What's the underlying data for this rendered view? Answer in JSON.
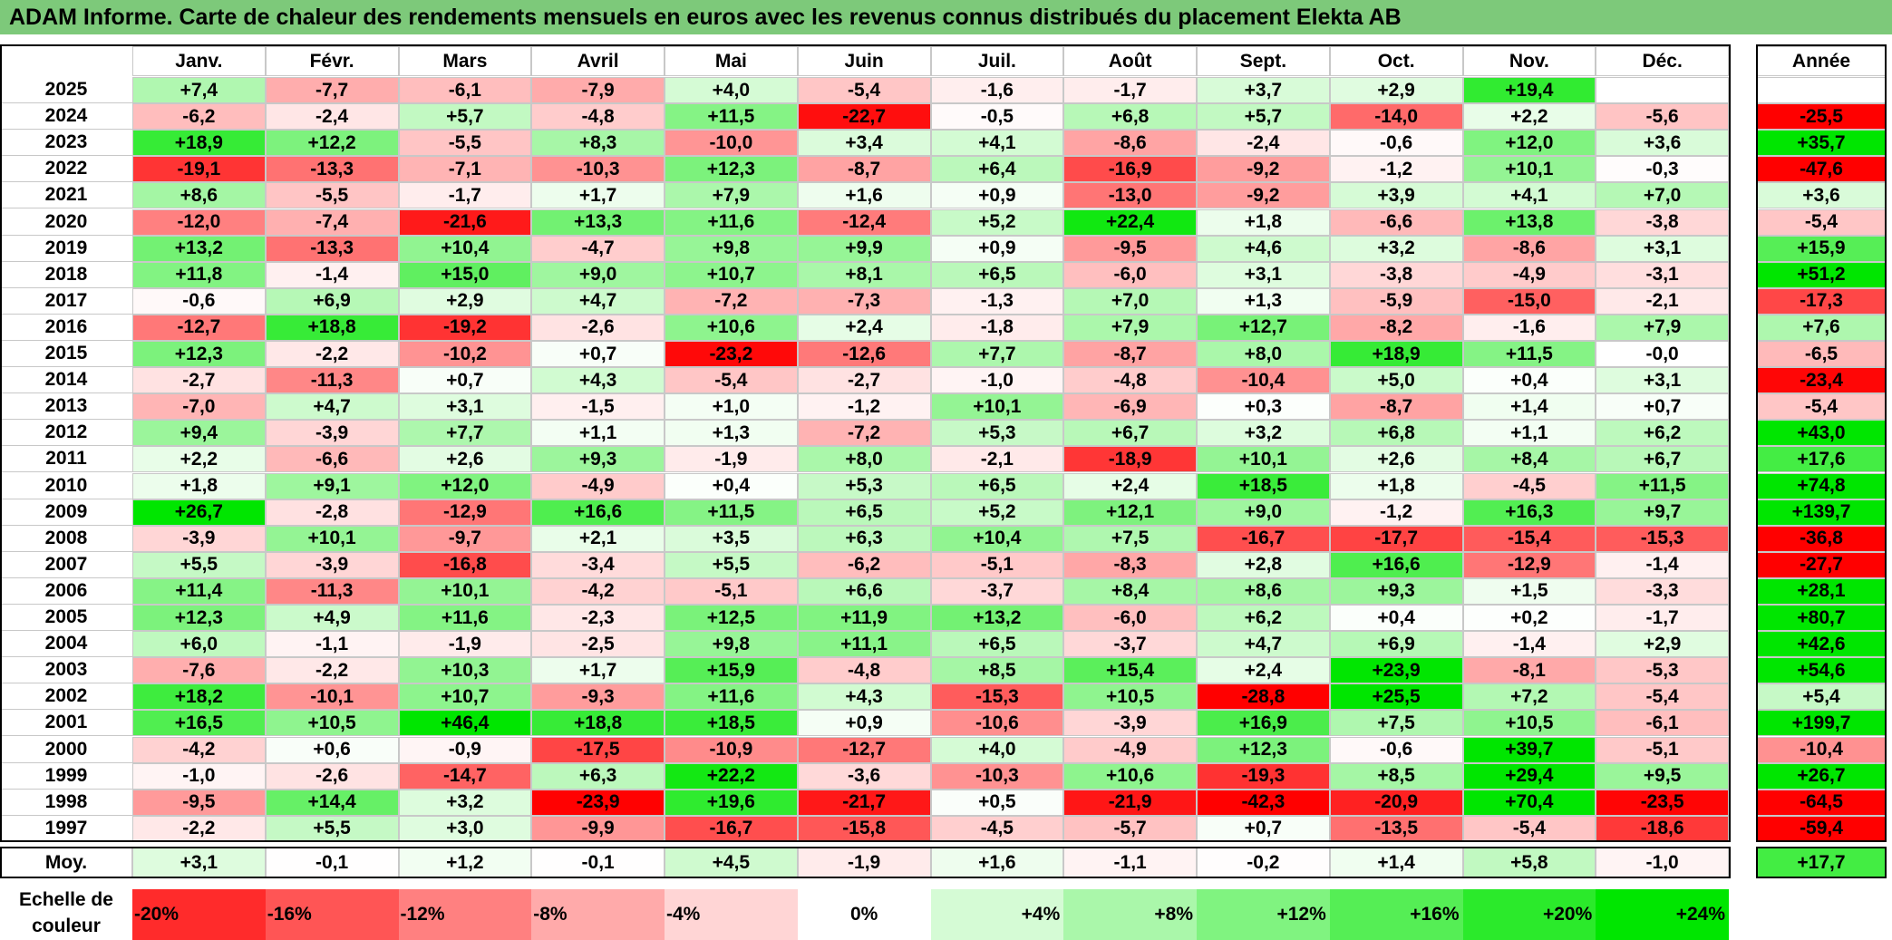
{
  "title": "ADAM Informe. Carte de chaleur des rendements mensuels en euros avec les revenus connus distribués du placement Elekta AB",
  "chart_data": {
    "type": "heatmap",
    "title": "ADAM Informe. Carte de chaleur des rendements mensuels en euros avec les revenus connus distribués du placement Elekta AB",
    "months": [
      "Janv.",
      "Févr.",
      "Mars",
      "Avril",
      "Mai",
      "Juin",
      "Juil.",
      "Août",
      "Sept.",
      "Oct.",
      "Nov.",
      "Déc."
    ],
    "year_header": "Année",
    "rows": [
      {
        "year": "2025",
        "values": [
          "+7,4",
          "-7,7",
          "-6,1",
          "-7,9",
          "+4,0",
          "-5,4",
          "-1,6",
          "-1,7",
          "+3,7",
          "+2,9",
          "+19,4",
          ""
        ],
        "annual": ""
      },
      {
        "year": "2024",
        "values": [
          "-6,2",
          "-2,4",
          "+5,7",
          "-4,8",
          "+11,5",
          "-22,7",
          "-0,5",
          "+6,8",
          "+5,7",
          "-14,0",
          "+2,2",
          "-5,6"
        ],
        "annual": "-25,5"
      },
      {
        "year": "2023",
        "values": [
          "+18,9",
          "+12,2",
          "-5,5",
          "+8,3",
          "-10,0",
          "+3,4",
          "+4,1",
          "-8,6",
          "-2,4",
          "-0,6",
          "+12,0",
          "+3,6"
        ],
        "annual": "+35,7"
      },
      {
        "year": "2022",
        "values": [
          "-19,1",
          "-13,3",
          "-7,1",
          "-10,3",
          "+12,3",
          "-8,7",
          "+6,4",
          "-16,9",
          "-9,2",
          "-1,2",
          "+10,1",
          "-0,3"
        ],
        "annual": "-47,6"
      },
      {
        "year": "2021",
        "values": [
          "+8,6",
          "-5,5",
          "-1,7",
          "+1,7",
          "+7,9",
          "+1,6",
          "+0,9",
          "-13,0",
          "-9,2",
          "+3,9",
          "+4,1",
          "+7,0"
        ],
        "annual": "+3,6"
      },
      {
        "year": "2020",
        "values": [
          "-12,0",
          "-7,4",
          "-21,6",
          "+13,3",
          "+11,6",
          "-12,4",
          "+5,2",
          "+22,4",
          "+1,8",
          "-6,6",
          "+13,8",
          "-3,8"
        ],
        "annual": "-5,4"
      },
      {
        "year": "2019",
        "values": [
          "+13,2",
          "-13,3",
          "+10,4",
          "-4,7",
          "+9,8",
          "+9,9",
          "+0,9",
          "-9,5",
          "+4,6",
          "+3,2",
          "-8,6",
          "+3,1"
        ],
        "annual": "+15,9"
      },
      {
        "year": "2018",
        "values": [
          "+11,8",
          "-1,4",
          "+15,0",
          "+9,0",
          "+10,7",
          "+8,1",
          "+6,5",
          "-6,0",
          "+3,1",
          "-3,8",
          "-4,9",
          "-3,1"
        ],
        "annual": "+51,2"
      },
      {
        "year": "2017",
        "values": [
          "-0,6",
          "+6,9",
          "+2,9",
          "+4,7",
          "-7,2",
          "-7,3",
          "-1,3",
          "+7,0",
          "+1,3",
          "-5,9",
          "-15,0",
          "-2,1"
        ],
        "annual": "-17,3"
      },
      {
        "year": "2016",
        "values": [
          "-12,7",
          "+18,8",
          "-19,2",
          "-2,6",
          "+10,6",
          "+2,4",
          "-1,8",
          "+7,9",
          "+12,7",
          "-8,2",
          "-1,6",
          "+7,9"
        ],
        "annual": "+7,6"
      },
      {
        "year": "2015",
        "values": [
          "+12,3",
          "-2,2",
          "-10,2",
          "+0,7",
          "-23,2",
          "-12,6",
          "+7,7",
          "-8,7",
          "+8,0",
          "+18,9",
          "+11,5",
          "-0,0"
        ],
        "annual": "-6,5"
      },
      {
        "year": "2014",
        "values": [
          "-2,7",
          "-11,3",
          "+0,7",
          "+4,3",
          "-5,4",
          "-2,7",
          "-1,0",
          "-4,8",
          "-10,4",
          "+5,0",
          "+0,4",
          "+3,1"
        ],
        "annual": "-23,4"
      },
      {
        "year": "2013",
        "values": [
          "-7,0",
          "+4,7",
          "+3,1",
          "-1,5",
          "+1,0",
          "-1,2",
          "+10,1",
          "-6,9",
          "+0,3",
          "-8,7",
          "+1,4",
          "+0,7"
        ],
        "annual": "-5,4"
      },
      {
        "year": "2012",
        "values": [
          "+9,4",
          "-3,9",
          "+7,7",
          "+1,1",
          "+1,3",
          "-7,2",
          "+5,3",
          "+6,7",
          "+3,2",
          "+6,8",
          "+1,1",
          "+6,2"
        ],
        "annual": "+43,0"
      },
      {
        "year": "2011",
        "values": [
          "+2,2",
          "-6,6",
          "+2,6",
          "+9,3",
          "-1,9",
          "+8,0",
          "-2,1",
          "-18,9",
          "+10,1",
          "+2,6",
          "+8,4",
          "+6,7"
        ],
        "annual": "+17,6"
      },
      {
        "year": "2010",
        "values": [
          "+1,8",
          "+9,1",
          "+12,0",
          "-4,9",
          "+0,4",
          "+5,3",
          "+6,5",
          "+2,4",
          "+18,5",
          "+1,8",
          "-4,5",
          "+11,5"
        ],
        "annual": "+74,8"
      },
      {
        "year": "2009",
        "values": [
          "+26,7",
          "-2,8",
          "-12,9",
          "+16,6",
          "+11,5",
          "+6,5",
          "+5,2",
          "+12,1",
          "+9,0",
          "-1,2",
          "+16,3",
          "+9,7"
        ],
        "annual": "+139,7"
      },
      {
        "year": "2008",
        "values": [
          "-3,9",
          "+10,1",
          "-9,7",
          "+2,1",
          "+3,5",
          "+6,3",
          "+10,4",
          "+7,5",
          "-16,7",
          "-17,7",
          "-15,4",
          "-15,3"
        ],
        "annual": "-36,8"
      },
      {
        "year": "2007",
        "values": [
          "+5,5",
          "-3,9",
          "-16,8",
          "-3,4",
          "+5,5",
          "-6,2",
          "-5,1",
          "-8,3",
          "+2,8",
          "+16,6",
          "-12,9",
          "-1,4"
        ],
        "annual": "-27,7"
      },
      {
        "year": "2006",
        "values": [
          "+11,4",
          "-11,3",
          "+10,1",
          "-4,2",
          "-5,1",
          "+6,6",
          "-3,7",
          "+8,4",
          "+8,6",
          "+9,3",
          "+1,5",
          "-3,3"
        ],
        "annual": "+28,1"
      },
      {
        "year": "2005",
        "values": [
          "+12,3",
          "+4,9",
          "+11,6",
          "-2,3",
          "+12,5",
          "+11,9",
          "+13,2",
          "-6,0",
          "+6,2",
          "+0,4",
          "+0,2",
          "-1,7"
        ],
        "annual": "+80,7"
      },
      {
        "year": "2004",
        "values": [
          "+6,0",
          "-1,1",
          "-1,9",
          "-2,5",
          "+9,8",
          "+11,1",
          "+6,5",
          "-3,7",
          "+4,7",
          "+6,9",
          "-1,4",
          "+2,9"
        ],
        "annual": "+42,6"
      },
      {
        "year": "2003",
        "values": [
          "-7,6",
          "-2,2",
          "+10,3",
          "+1,7",
          "+15,9",
          "-4,8",
          "+8,5",
          "+15,4",
          "+2,4",
          "+23,9",
          "-8,1",
          "-5,3"
        ],
        "annual": "+54,6"
      },
      {
        "year": "2002",
        "values": [
          "+18,2",
          "-10,1",
          "+10,7",
          "-9,3",
          "+11,6",
          "+4,3",
          "-15,3",
          "+10,5",
          "-28,8",
          "+25,5",
          "+7,2",
          "-5,4"
        ],
        "annual": "+5,4"
      },
      {
        "year": "2001",
        "values": [
          "+16,5",
          "+10,5",
          "+46,4",
          "+18,8",
          "+18,5",
          "+0,9",
          "-10,6",
          "-3,9",
          "+16,9",
          "+7,5",
          "+10,5",
          "-6,1"
        ],
        "annual": "+199,7"
      },
      {
        "year": "2000",
        "values": [
          "-4,2",
          "+0,6",
          "-0,9",
          "-17,5",
          "-10,9",
          "-12,7",
          "+4,0",
          "-4,9",
          "+12,3",
          "-0,6",
          "+39,7",
          "-5,1"
        ],
        "annual": "-10,4"
      },
      {
        "year": "1999",
        "values": [
          "-1,0",
          "-2,6",
          "-14,7",
          "+6,3",
          "+22,2",
          "-3,6",
          "-10,3",
          "+10,6",
          "-19,3",
          "+8,5",
          "+29,4",
          "+9,5"
        ],
        "annual": "+26,7"
      },
      {
        "year": "1998",
        "values": [
          "-9,5",
          "+14,4",
          "+3,2",
          "-23,9",
          "+19,6",
          "-21,7",
          "+0,5",
          "-21,9",
          "-42,3",
          "-20,9",
          "+70,4",
          "-23,5"
        ],
        "annual": "-64,5"
      },
      {
        "year": "1997",
        "values": [
          "-2,2",
          "+5,5",
          "+3,0",
          "-9,9",
          "-16,7",
          "-15,8",
          "-4,5",
          "-5,7",
          "+0,7",
          "-13,5",
          "-5,4",
          "-18,6"
        ],
        "annual": "-59,4"
      }
    ],
    "average": {
      "label": "Moy.",
      "values": [
        "+3,1",
        "-0,1",
        "+1,2",
        "-0,1",
        "+4,5",
        "-1,9",
        "+1,6",
        "-1,1",
        "-0,2",
        "+1,4",
        "+5,8",
        "-1,0"
      ],
      "annual": "+17,7"
    },
    "scale": {
      "label": "Echelle de couleur",
      "steps": [
        -20,
        -16,
        -12,
        -8,
        -4,
        0,
        4,
        8,
        12,
        16,
        20,
        24
      ],
      "labels": [
        "-20%",
        "-16%",
        "-12%",
        "-8%",
        "-4%",
        "0%",
        "+4%",
        "+8%",
        "+12%",
        "+16%",
        "+20%",
        "+24%"
      ]
    },
    "colors": {
      "negative_max": "#ff0000",
      "neutral": "#ffffff",
      "positive_max": "#00e000",
      "header_bar": "#7dc97a"
    }
  }
}
